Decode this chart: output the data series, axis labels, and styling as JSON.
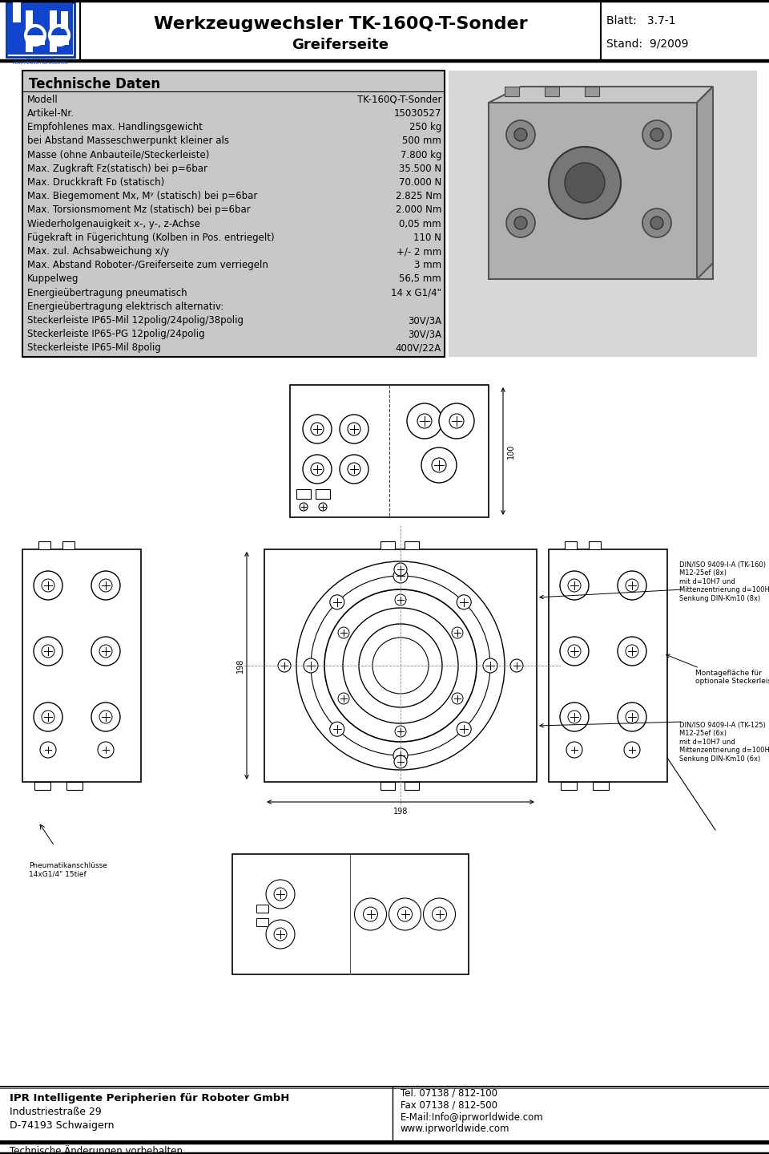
{
  "title_main": "Werkzeugwechsler TK-160Q-T-Sonder",
  "title_sub": "Greiferseite",
  "blatt": "Blatt:   3.7-1",
  "stand": "Stand:  9/2009",
  "tech_daten_title": "Technische Daten",
  "tech_rows": [
    [
      "Modell",
      "TK-160Q-T-Sonder"
    ],
    [
      "Artikel-Nr.",
      "15030527"
    ],
    [
      "Empfohlenes max. Handlingsgewicht",
      "250 kg"
    ],
    [
      "bei Abstand Masseschwerpunkt kleiner als",
      "500 mm"
    ],
    [
      "Masse (ohne Anbauteile/Steckerleiste)",
      "7.800 kg"
    ],
    [
      "Max. Zugkraft Fz(statisch) bei p=6bar",
      "35.500 N"
    ],
    [
      "Max. Druckkraft Fᴅ (statisch)",
      "70.000 N"
    ],
    [
      "Max. Biegemoment Mx, Mʸ (statisch) bei p=6bar",
      "2.825 Nm"
    ],
    [
      "Max. Torsionsmoment Mz (statisch) bei p=6bar",
      "2.000 Nm"
    ],
    [
      "Wiederholgenauigkeit x-, y-, z-Achse",
      "0,05 mm"
    ],
    [
      "Fügekraft in Fügerichtung (Kolben in Pos. entriegelt)",
      "110 N"
    ],
    [
      "Max. zul. Achsabweichung x/y",
      "+/- 2 mm"
    ],
    [
      "Max. Abstand Roboter-/Greiferseite zum verriegeln",
      "3 mm"
    ],
    [
      "Kuppelweg",
      "56,5 mm"
    ],
    [
      "Energieübertragung pneumatisch",
      "14 x G1/4\""
    ],
    [
      "Energieübertragung elektrisch alternativ:",
      ""
    ],
    [
      "Steckerleiste IP65-Mil 12polig/24polig/38polig",
      "30V/3A"
    ],
    [
      "Steckerleiste IP65-PG 12polig/24polig",
      "30V/3A"
    ],
    [
      "Steckerleiste IP65-Mil 8polig",
      "400V/22A"
    ]
  ],
  "footer_left": [
    "IPR Intelligente Peripherien für Roboter GmbH",
    "Industriestraße 29",
    "D-74193 Schwaigern"
  ],
  "footer_right": [
    "Tel. 07138 / 812-100",
    "Fax 07138 / 812-500",
    "E-Mail:Info@iprworldwide.com",
    "www.iprworldwide.com"
  ],
  "footer_bottom": "Technische Änderungen vorbehalten",
  "bg_color": "#ffffff",
  "table_bg": "#c8c8c8",
  "drawing_bg": "#ffffff",
  "line_color": "#000000",
  "dim_color": "#555555"
}
